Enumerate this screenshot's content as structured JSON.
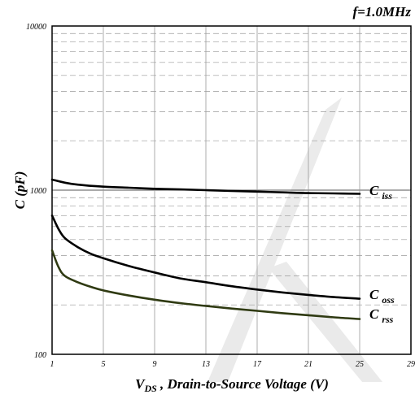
{
  "chart_data": {
    "type": "line",
    "annotation": "f=1.0MHz",
    "xlabel": {
      "main": "V",
      "sub": "DS",
      "rest": " , Drain-to-Source Voltage (V)"
    },
    "ylabel": "C (pF)",
    "x_ticks": [
      "1",
      "5",
      "9",
      "13",
      "17",
      "21",
      "25",
      "29"
    ],
    "y_ticks": [
      "100",
      "1000",
      "10000"
    ],
    "xlim": [
      1,
      29
    ],
    "ylim": [
      100,
      10000
    ],
    "yscale": "log",
    "grid": true,
    "series": [
      {
        "label_main": "C",
        "label_sub": "iss",
        "color": "#000000",
        "x": [
          1,
          2,
          3,
          5,
          7,
          9,
          11,
          13,
          15,
          17,
          19,
          21,
          23,
          25
        ],
        "y": [
          1160,
          1110,
          1080,
          1050,
          1035,
          1020,
          1010,
          1000,
          990,
          980,
          970,
          960,
          955,
          950
        ]
      },
      {
        "label_main": "C",
        "label_sub": "oss",
        "color": "#000000",
        "x": [
          1,
          1.5,
          2,
          3,
          4,
          5,
          7,
          9,
          11,
          13,
          15,
          17,
          19,
          21,
          23,
          25
        ],
        "y": [
          700,
          580,
          510,
          450,
          410,
          385,
          345,
          315,
          290,
          275,
          260,
          248,
          238,
          230,
          223,
          218
        ]
      },
      {
        "label_main": "C",
        "label_sub": "rss",
        "color": "#2f3a12",
        "x": [
          1,
          1.5,
          2,
          3,
          4,
          5,
          7,
          9,
          11,
          13,
          15,
          17,
          19,
          21,
          23,
          25
        ],
        "y": [
          430,
          340,
          300,
          275,
          258,
          245,
          228,
          215,
          205,
          197,
          190,
          184,
          178,
          173,
          168,
          164
        ]
      }
    ]
  }
}
